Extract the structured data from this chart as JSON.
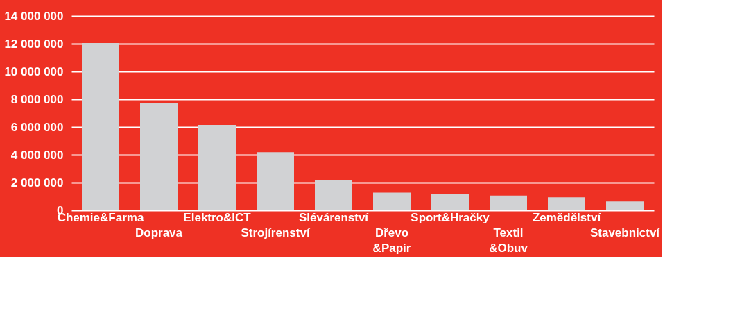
{
  "chart_data": {
    "type": "bar",
    "categories": [
      "Chemie&Farma",
      "Doprava",
      "Elektro&ICT",
      "Strojírenství",
      "Slévárenství",
      "Dřevo\n&Papír",
      "Sport&Hračky",
      "Textil\n&Obuv",
      "Zemědělství",
      "Stavebnictví"
    ],
    "values": [
      12050000,
      7700000,
      6150000,
      4190000,
      2150000,
      1280000,
      1170000,
      1060000,
      940000,
      640000
    ],
    "color": "#d1d2d4",
    "ylim": [
      0,
      14000000
    ],
    "yticks": [
      {
        "value": 0,
        "label": "0"
      },
      {
        "value": 2000000,
        "label": "2 000 000"
      },
      {
        "value": 4000000,
        "label": "4 000 000"
      },
      {
        "value": 6000000,
        "label": "6 000 000"
      },
      {
        "value": 8000000,
        "label": "8 000 000"
      },
      {
        "value": 10000000,
        "label": "10 000 000"
      },
      {
        "value": 12000000,
        "label": "12 000 000"
      },
      {
        "value": 14000000,
        "label": "14 000 000"
      }
    ],
    "grid": "y"
  }
}
